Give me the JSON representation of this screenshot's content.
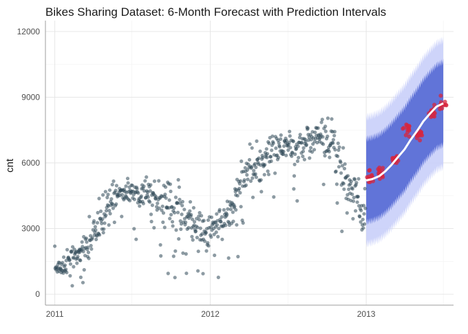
{
  "chart_data": {
    "type": "scatter",
    "title": "Bikes Sharing Dataset: 6-Month Forecast with Prediction Intervals",
    "xlabel": "",
    "ylabel": "cnt",
    "x_ticks": [
      "2011",
      "2012",
      "2013"
    ],
    "y_ticks": [
      0,
      3000,
      6000,
      9000,
      12000
    ],
    "xlim": [
      "2010-12-10",
      "2013-07-25"
    ],
    "ylim": [
      -500,
      12500
    ],
    "grid": true,
    "legend": "none",
    "colors": {
      "observed": "#2f4858",
      "forecast_points": "#d7263d",
      "trend_line": "#ffffff",
      "inner_interval": "#5b6fd6",
      "outer_interval": "#c9cffa"
    },
    "observed_monthly": [
      {
        "x": "2011-01-15",
        "y": 1230,
        "spread": 450
      },
      {
        "x": "2011-02-15",
        "y": 1720,
        "spread": 500
      },
      {
        "x": "2011-03-15",
        "y": 2080,
        "spread": 650
      },
      {
        "x": "2011-04-15",
        "y": 3150,
        "spread": 900
      },
      {
        "x": "2011-05-15",
        "y": 4380,
        "spread": 650
      },
      {
        "x": "2011-06-15",
        "y": 4780,
        "spread": 550
      },
      {
        "x": "2011-07-15",
        "y": 4560,
        "spread": 600
      },
      {
        "x": "2011-08-15",
        "y": 4420,
        "spread": 700
      },
      {
        "x": "2011-09-15",
        "y": 4250,
        "spread": 950
      },
      {
        "x": "2011-10-15",
        "y": 3950,
        "spread": 1050
      },
      {
        "x": "2011-11-15",
        "y": 3400,
        "spread": 700
      },
      {
        "x": "2011-12-15",
        "y": 2820,
        "spread": 800
      },
      {
        "x": "2012-01-15",
        "y": 3120,
        "spread": 900
      },
      {
        "x": "2012-02-15",
        "y": 3560,
        "spread": 700
      },
      {
        "x": "2012-03-15",
        "y": 5320,
        "spread": 1000
      },
      {
        "x": "2012-04-15",
        "y": 5810,
        "spread": 1000
      },
      {
        "x": "2012-05-15",
        "y": 6310,
        "spread": 900
      },
      {
        "x": "2012-06-15",
        "y": 6760,
        "spread": 750
      },
      {
        "x": "2012-07-15",
        "y": 6570,
        "spread": 650
      },
      {
        "x": "2012-08-15",
        "y": 6920,
        "spread": 700
      },
      {
        "x": "2012-09-15",
        "y": 7280,
        "spread": 750
      },
      {
        "x": "2012-10-15",
        "y": 6960,
        "spread": 1100
      },
      {
        "x": "2012-11-15",
        "y": 5100,
        "spread": 1000
      },
      {
        "x": "2012-12-15",
        "y": 3990,
        "spread": 1300
      }
    ],
    "forecast": [
      {
        "x": "2013-01-01",
        "y": 5200
      },
      {
        "x": "2013-01-15",
        "y": 5260
      },
      {
        "x": "2013-02-01",
        "y": 5400
      },
      {
        "x": "2013-02-15",
        "y": 5620
      },
      {
        "x": "2013-03-01",
        "y": 5900
      },
      {
        "x": "2013-03-15",
        "y": 6230
      },
      {
        "x": "2013-04-01",
        "y": 6620
      },
      {
        "x": "2013-04-15",
        "y": 7050
      },
      {
        "x": "2013-05-01",
        "y": 7480
      },
      {
        "x": "2013-05-15",
        "y": 7900
      },
      {
        "x": "2013-06-01",
        "y": 8280
      },
      {
        "x": "2013-06-15",
        "y": 8570
      },
      {
        "x": "2013-07-01",
        "y": 8720
      }
    ],
    "forecast_points": [
      {
        "x": "2013-01-10",
        "y": 5350
      },
      {
        "x": "2013-02-05",
        "y": 5550
      },
      {
        "x": "2013-03-10",
        "y": 6150
      },
      {
        "x": "2013-04-05",
        "y": 7550
      },
      {
        "x": "2013-05-05",
        "y": 7320
      },
      {
        "x": "2013-06-05",
        "y": 8350
      },
      {
        "x": "2013-07-01",
        "y": 8780
      }
    ],
    "interval_80": {
      "lower_offset": 1900,
      "upper_offset": 1900
    },
    "interval_95": {
      "lower_offset": 2900,
      "upper_offset": 2900
    }
  }
}
